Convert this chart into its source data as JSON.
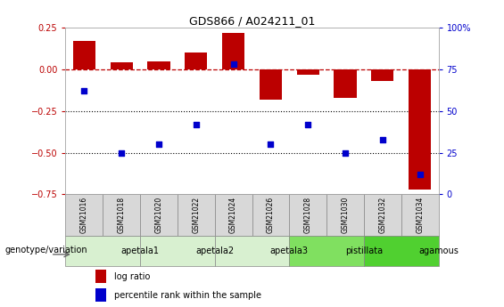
{
  "title": "GDS866 / A024211_01",
  "samples": [
    "GSM21016",
    "GSM21018",
    "GSM21020",
    "GSM21022",
    "GSM21024",
    "GSM21026",
    "GSM21028",
    "GSM21030",
    "GSM21032",
    "GSM21034"
  ],
  "log_ratio": [
    0.17,
    0.04,
    0.05,
    0.1,
    0.22,
    -0.18,
    -0.03,
    -0.17,
    -0.07,
    -0.72
  ],
  "percentile_rank": [
    62,
    25,
    30,
    42,
    78,
    30,
    42,
    25,
    33,
    12
  ],
  "bar_color": "#bb0000",
  "dot_color": "#0000cc",
  "ylim_left": [
    -0.75,
    0.25
  ],
  "ylim_right": [
    0,
    100
  ],
  "yticks_left": [
    0.25,
    0.0,
    -0.25,
    -0.5,
    -0.75
  ],
  "yticks_right": [
    100,
    75,
    50,
    25,
    0
  ],
  "groups": [
    {
      "label": "apetala1",
      "start": 0,
      "end": 2,
      "color": "#d8f0d0"
    },
    {
      "label": "apetala2",
      "start": 2,
      "end": 4,
      "color": "#d8f0d0"
    },
    {
      "label": "apetala3",
      "start": 4,
      "end": 6,
      "color": "#d8f0d0"
    },
    {
      "label": "pistillata",
      "start": 6,
      "end": 8,
      "color": "#80e060"
    },
    {
      "label": "agamous",
      "start": 8,
      "end": 10,
      "color": "#50d030"
    }
  ],
  "genotype_label": "genotype/variation",
  "legend_bar": "log ratio",
  "legend_dot": "percentile rank within the sample",
  "hline_y": 0.0,
  "dotted_lines": [
    -0.25,
    -0.5
  ],
  "sample_box_color": "#d8d8d8",
  "sample_box_edge": "#888888"
}
